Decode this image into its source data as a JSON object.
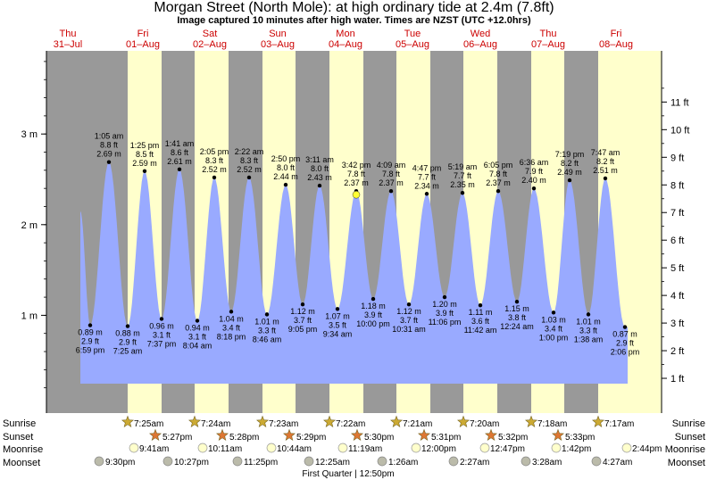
{
  "header": {
    "title": "Morgan Street (North Mole): at high  ordinary tide at 2.4m (7.8ft)",
    "subtitle": "Image captured 10 minutes after high water. Times are NZST (UTC +12.0hrs)"
  },
  "chart_data": {
    "type": "area",
    "title": "Morgan Street (North Mole): at high  ordinary tide at 2.4m (7.8ft)",
    "subtitle": "Image captured 10 minutes after high water. Times are NZST (UTC +12.0hrs)",
    "days": [
      {
        "dow": "Thu",
        "date": "31–Jul"
      },
      {
        "dow": "Fri",
        "date": "01–Aug"
      },
      {
        "dow": "Sat",
        "date": "02–Aug"
      },
      {
        "dow": "Sun",
        "date": "03–Aug"
      },
      {
        "dow": "Mon",
        "date": "04–Aug"
      },
      {
        "dow": "Tue",
        "date": "05–Aug"
      },
      {
        "dow": "Wed",
        "date": "06–Aug"
      },
      {
        "dow": "Thu",
        "date": "07–Aug"
      },
      {
        "dow": "Fri",
        "date": "08–Aug"
      }
    ],
    "y_left": {
      "unit": "m",
      "ticks": [
        "1 m",
        "2 m",
        "3 m"
      ]
    },
    "y_right": {
      "unit": "ft",
      "ticks": [
        "1 ft",
        "2 ft",
        "3 ft",
        "4 ft",
        "5 ft",
        "6 ft",
        "7 ft",
        "8 ft",
        "9 ft",
        "10 ft",
        "11 ft"
      ]
    },
    "start_level_m": 2.15,
    "highs": [
      {
        "time": "1:05 am",
        "ft": "8.8 ft",
        "m": 2.69,
        "m_label": "2.69 m"
      },
      {
        "time": "1:25 pm",
        "ft": "8.5 ft",
        "m": 2.59,
        "m_label": "2.59 m"
      },
      {
        "time": "1:41 am",
        "ft": "8.6 ft",
        "m": 2.61,
        "m_label": "2.61 m"
      },
      {
        "time": "2:05 pm",
        "ft": "8.3 ft",
        "m": 2.52,
        "m_label": "2.52 m"
      },
      {
        "time": "2:22 am",
        "ft": "8.3 ft",
        "m": 2.52,
        "m_label": "2.52 m"
      },
      {
        "time": "2:50 pm",
        "ft": "8.0 ft",
        "m": 2.44,
        "m_label": "2.44 m"
      },
      {
        "time": "3:11 am",
        "ft": "8.0 ft",
        "m": 2.43,
        "m_label": "2.43 m"
      },
      {
        "time": "3:42 pm",
        "ft": "7.8 ft",
        "m": 2.37,
        "m_label": "2.37 m"
      },
      {
        "time": "4:09 am",
        "ft": "7.8 ft",
        "m": 2.37,
        "m_label": "2.37 m"
      },
      {
        "time": "4:47 pm",
        "ft": "7.7 ft",
        "m": 2.34,
        "m_label": "2.34 m"
      },
      {
        "time": "5:19 am",
        "ft": "7.7 ft",
        "m": 2.35,
        "m_label": "2.35 m"
      },
      {
        "time": "6:05 pm",
        "ft": "7.8 ft",
        "m": 2.37,
        "m_label": "2.37 m"
      },
      {
        "time": "6:36 am",
        "ft": "7.9 ft",
        "m": 2.4,
        "m_label": "2.40 m"
      },
      {
        "time": "7:19 pm",
        "ft": "8.2 ft",
        "m": 2.49,
        "m_label": "2.49 m"
      },
      {
        "time": "7:47 am",
        "ft": "8.2 ft",
        "m": 2.51,
        "m_label": "2.51 m"
      }
    ],
    "lows": [
      {
        "time": "6:59 pm",
        "ft": "2.9 ft",
        "m": 0.89,
        "m_label": "0.89 m"
      },
      {
        "time": "7:25 am",
        "ft": "2.9 ft",
        "m": 0.88,
        "m_label": "0.88 m"
      },
      {
        "time": "7:37 pm",
        "ft": "3.1 ft",
        "m": 0.96,
        "m_label": "0.96 m"
      },
      {
        "time": "8:04 am",
        "ft": "3.1 ft",
        "m": 0.94,
        "m_label": "0.94 m"
      },
      {
        "time": "8:18 pm",
        "ft": "3.4 ft",
        "m": 1.04,
        "m_label": "1.04 m"
      },
      {
        "time": "8:46 am",
        "ft": "3.3 ft",
        "m": 1.01,
        "m_label": "1.01 m"
      },
      {
        "time": "9:05 pm",
        "ft": "3.7 ft",
        "m": 1.12,
        "m_label": "1.12 m"
      },
      {
        "time": "9:34 am",
        "ft": "3.5 ft",
        "m": 1.07,
        "m_label": "1.07 m"
      },
      {
        "time": "10:00 pm",
        "ft": "3.9 ft",
        "m": 1.18,
        "m_label": "1.18 m"
      },
      {
        "time": "10:31 am",
        "ft": "3.7 ft",
        "m": 1.12,
        "m_label": "1.12 m"
      },
      {
        "time": "11:06 pm",
        "ft": "3.9 ft",
        "m": 1.2,
        "m_label": "1.20 m"
      },
      {
        "time": "11:42 am",
        "ft": "3.6 ft",
        "m": 1.11,
        "m_label": "1.11 m"
      },
      {
        "time": "12:24 am",
        "ft": "3.8 ft",
        "m": 1.15,
        "m_label": "1.15 m"
      },
      {
        "time": "1:00 pm",
        "ft": "3.4 ft",
        "m": 1.03,
        "m_label": "1.03 m"
      },
      {
        "time": "1:38 am",
        "ft": "3.3 ft",
        "m": 1.01,
        "m_label": "1.01 m"
      },
      {
        "time": "2:06 pm",
        "ft": "2.9 ft",
        "m": 0.87,
        "m_label": "0.87 m"
      }
    ],
    "sunrise": [
      "7:25am",
      "7:24am",
      "7:23am",
      "7:22am",
      "7:21am",
      "7:20am",
      "7:18am",
      "7:17am"
    ],
    "sunset": [
      "5:27pm",
      "5:28pm",
      "5:29pm",
      "5:30pm",
      "5:31pm",
      "5:32pm",
      "5:33pm"
    ],
    "moonrise": [
      "9:41am",
      "10:11am",
      "10:44am",
      "11:19am",
      "12:00pm",
      "12:47pm",
      "1:42pm",
      "2:44pm"
    ],
    "moonset": [
      "9:30pm",
      "10:27pm",
      "11:25pm",
      "12:25am",
      "1:26am",
      "2:27am",
      "3:28am",
      "4:27am"
    ],
    "row_labels": {
      "sunrise": "Sunrise",
      "sunset": "Sunset",
      "moonrise": "Moonrise",
      "moonset": "Moonset"
    },
    "moon_phase": "First Quarter | 12:50pm",
    "colors": {
      "night": "#999999",
      "day": "#ffffcc",
      "water": "#99aaff",
      "day_label": "#cc0000",
      "sun": "#ccaa33",
      "sunset": "#dd7733",
      "moon": "#ffffcc",
      "moonset": "#bbbbaa"
    }
  }
}
